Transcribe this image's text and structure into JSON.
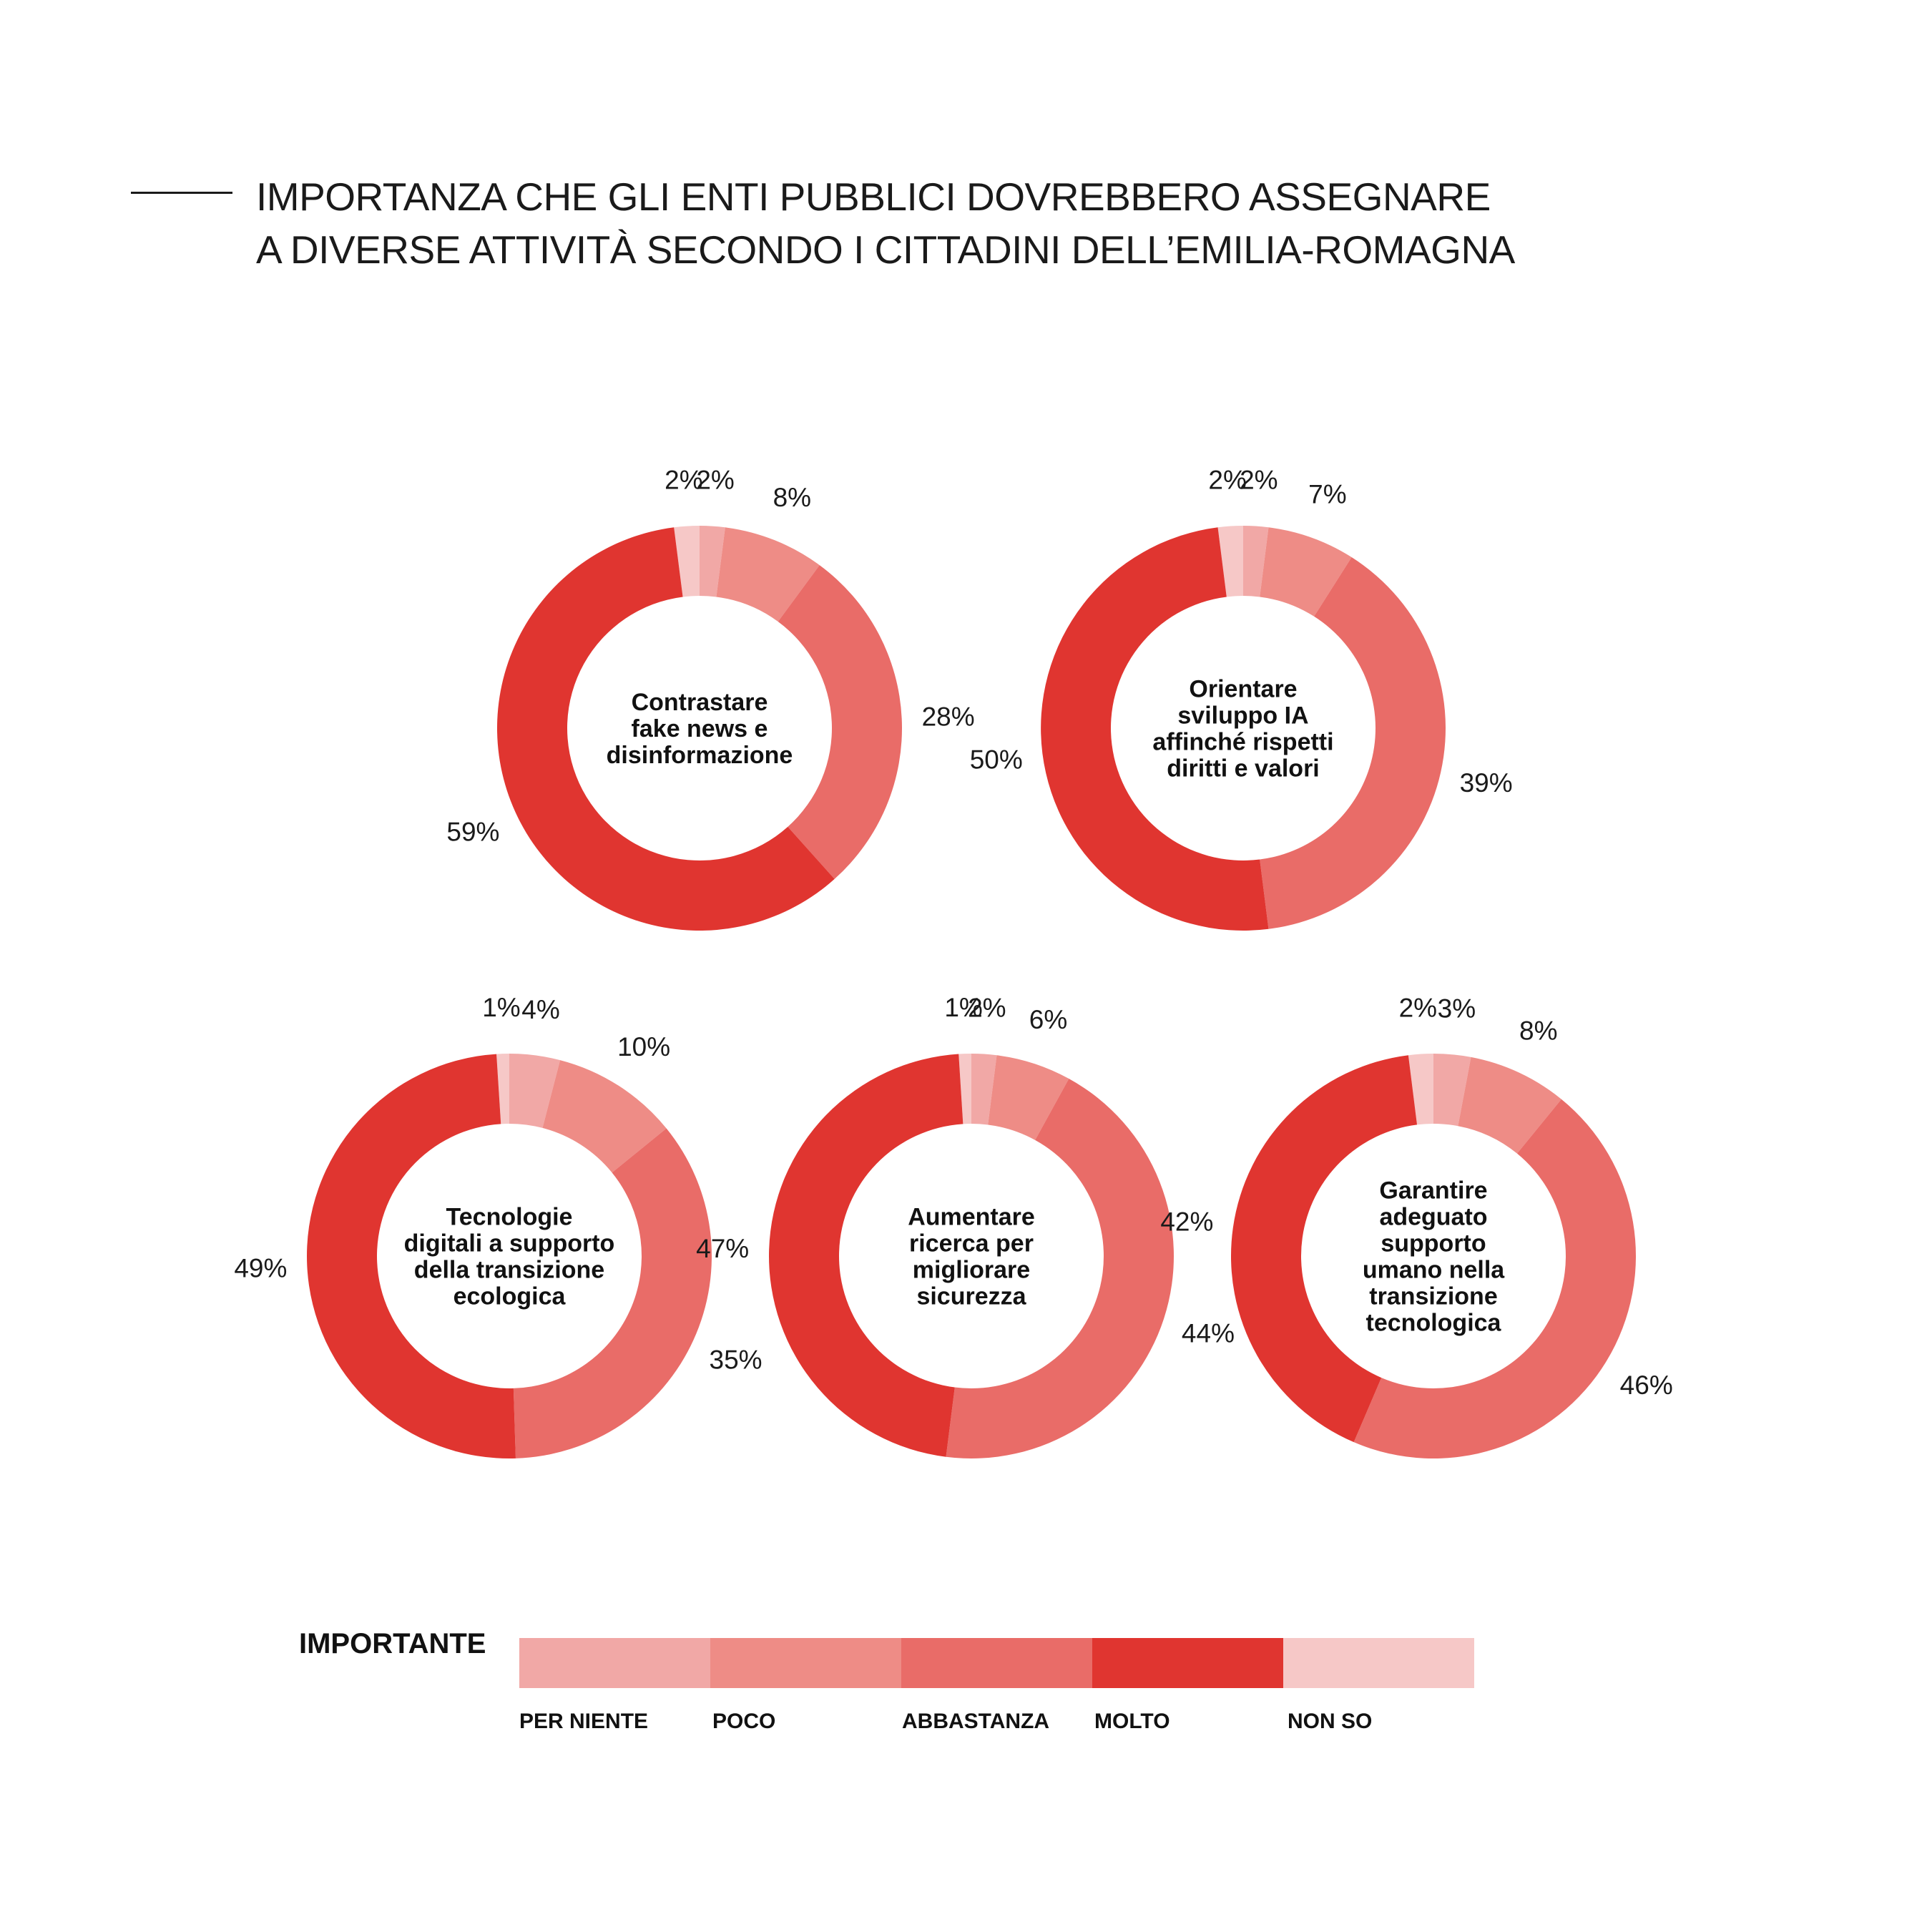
{
  "title": {
    "line1": "IMPORTANZA CHE GLI ENTI PUBBLICI DOVREBBERO ASSEGNARE",
    "line2": "A DIVERSE ATTIVITÀ SECONDO I CITTADINI DELL’EMILIA-ROMAGNA"
  },
  "colors": {
    "per_niente": "#F1A8A6",
    "poco": "#EE8C86",
    "abbastanza": "#E96C68",
    "molto": "#E03530",
    "non_so": "#F6C8C7"
  },
  "legend": {
    "title": "IMPORTANTE",
    "items": [
      {
        "label": "PER NIENTE",
        "color_key": "per_niente"
      },
      {
        "label": "POCO",
        "color_key": "poco"
      },
      {
        "label": "ABBASTANZA",
        "color_key": "abbastanza"
      },
      {
        "label": "MOLTO",
        "color_key": "molto"
      },
      {
        "label": "NON SO",
        "color_key": "non_so"
      }
    ]
  },
  "chart_data": [
    {
      "type": "pie",
      "title": "Contrastare fake news e disinformazione",
      "title_lines": [
        "Contrastare",
        "fake news e",
        "disinformazione"
      ],
      "categories": [
        "PER NIENTE",
        "POCO",
        "ABBASTANZA",
        "MOLTO",
        "NON SO"
      ],
      "values": [
        2,
        8,
        28,
        59,
        2
      ],
      "labels": [
        "2%",
        "8%",
        "28%",
        "59%",
        "2%"
      ]
    },
    {
      "type": "pie",
      "title": "Orientare sviluppo IA affinché rispetti diritti e valori",
      "title_lines": [
        "Orientare",
        "sviluppo IA",
        "affinché rispetti",
        "diritti e valori"
      ],
      "categories": [
        "PER NIENTE",
        "POCO",
        "ABBASTANZA",
        "MOLTO",
        "NON SO"
      ],
      "values": [
        2,
        7,
        39,
        50,
        2
      ],
      "labels": [
        "2%",
        "7%",
        "39%",
        "50%",
        "2%"
      ]
    },
    {
      "type": "pie",
      "title": "Tecnologie digitali a supporto della transizione ecologica",
      "title_lines": [
        "Tecnologie",
        "digitali a supporto",
        "della transizione",
        "ecologica"
      ],
      "categories": [
        "PER NIENTE",
        "POCO",
        "ABBASTANZA",
        "MOLTO",
        "NON SO"
      ],
      "values": [
        4,
        10,
        35,
        49,
        1
      ],
      "labels": [
        "4%",
        "10%",
        "35%",
        "49%",
        "1%"
      ]
    },
    {
      "type": "pie",
      "title": "Aumentare ricerca per migliorare sicurezza",
      "title_lines": [
        "Aumentare",
        "ricerca per",
        "migliorare",
        "sicurezza"
      ],
      "categories": [
        "PER NIENTE",
        "POCO",
        "ABBASTANZA",
        "MOLTO",
        "NON SO"
      ],
      "values": [
        2,
        6,
        44,
        47,
        1
      ],
      "labels": [
        "2%",
        "6%",
        "44%",
        "47%",
        "1%"
      ]
    },
    {
      "type": "pie",
      "title": "Garantire adeguato supporto umano nella transizione tecnologica",
      "title_lines": [
        "Garantire",
        "adeguato",
        "supporto",
        "umano nella",
        "transizione",
        "tecnologica"
      ],
      "categories": [
        "PER NIENTE",
        "POCO",
        "ABBASTANZA",
        "MOLTO",
        "NON SO"
      ],
      "values": [
        3,
        8,
        46,
        42,
        2
      ],
      "labels": [
        "3%",
        "8%",
        "46%",
        "42%",
        "2%"
      ]
    }
  ]
}
